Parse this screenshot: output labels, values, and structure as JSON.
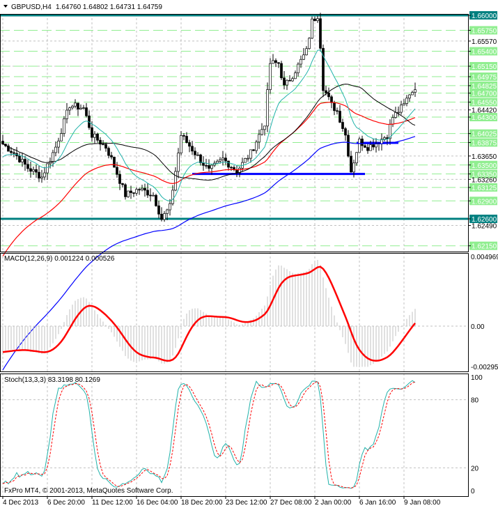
{
  "header": {
    "symbol": "GBPUSD,H4",
    "ohlc": "1.64760 1.64802 1.64731 1.64759"
  },
  "macd_label": "MACD(12,26,9) 0.001224 0.000526",
  "stoch_label": "Stoch(13,3,3) 83.3198 80.1269",
  "copyright": "FxPro MT4, © 2001-2013, MetaQuotes Software Corp.",
  "colors": {
    "teal": "#008080",
    "green_level": "#90ee90",
    "blue": "#0000ff",
    "red": "#ff0000",
    "cyan": "#20b2aa",
    "black": "#000000",
    "macd_hist": "#c0c0c0"
  },
  "chart_data": [
    {
      "type": "candlestick",
      "title": "GBPUSD,H4",
      "ylim": [
        1.6211,
        1.6602
      ],
      "close_keyframes": [
        [
          0,
          1.6385
        ],
        [
          4,
          1.637
        ],
        [
          9,
          1.6345
        ],
        [
          14,
          1.633
        ],
        [
          19,
          1.638
        ],
        [
          24,
          1.645
        ],
        [
          29,
          1.6445
        ],
        [
          32,
          1.64
        ],
        [
          37,
          1.638
        ],
        [
          39,
          1.636
        ],
        [
          44,
          1.63
        ],
        [
          49,
          1.631
        ],
        [
          54,
          1.63
        ],
        [
          57,
          1.626
        ],
        [
          60,
          1.628
        ],
        [
          63,
          1.637
        ],
        [
          64,
          1.64
        ],
        [
          69,
          1.637
        ],
        [
          74,
          1.634
        ],
        [
          79,
          1.636
        ],
        [
          84,
          1.634
        ],
        [
          89,
          1.637
        ],
        [
          94,
          1.642
        ],
        [
          96,
          1.652
        ],
        [
          99,
          1.652
        ],
        [
          101,
          1.648
        ],
        [
          104,
          1.65
        ],
        [
          109,
          1.654
        ],
        [
          111,
          1.659
        ],
        [
          113,
          1.66
        ],
        [
          114,
          1.655
        ],
        [
          115,
          1.648
        ],
        [
          118,
          1.645
        ],
        [
          120,
          1.644
        ],
        [
          123,
          1.64
        ],
        [
          125,
          1.634
        ],
        [
          128,
          1.639
        ],
        [
          131,
          1.638
        ],
        [
          135,
          1.639
        ],
        [
          138,
          1.64
        ],
        [
          140,
          1.643
        ],
        [
          144,
          1.645
        ],
        [
          146,
          1.647
        ],
        [
          148,
          1.6476
        ]
      ],
      "price_labels": [
        "1.66000",
        "1.65750",
        "1.65570",
        "1.65400",
        "1.65150",
        "1.64975",
        "1.64825",
        "1.64700",
        "1.64550",
        "1.64420",
        "1.64300",
        "1.64025",
        "1.63875",
        "1.63650",
        "1.63500",
        "1.63350",
        "1.63260",
        "1.63125",
        "1.62900",
        "1.62600",
        "1.62490",
        "1.62150"
      ],
      "key_levels": [
        1.66,
        1.626
      ],
      "green_levels": [
        1.6575,
        1.654,
        1.6515,
        1.64975,
        1.64825,
        1.647,
        1.6455,
        1.643,
        1.64025,
        1.63875,
        1.635,
        1.6335,
        1.63125,
        1.629,
        1.6215
      ],
      "grid_levels": [
        1.6557,
        1.6515,
        1.6442,
        1.6365,
        1.6326,
        1.6249
      ],
      "support_lines": [
        {
          "level": 1.6335,
          "from_bar": 68,
          "to_bar": 130
        },
        {
          "level": 1.6387,
          "from_bar": 127,
          "to_bar": 142
        }
      ],
      "x_tick_labels": [
        "4 Dec 2013",
        "6 Dec 20:00",
        "11 Dec 12:00",
        "16 Dec 04:00",
        "18 Dec 20:00",
        "23 Dec 12:00",
        "27 Dec 08:00",
        "2 Jan 00:00",
        "6 Jan 16:00",
        "9 Jan 08:00"
      ]
    },
    {
      "type": "bar+line",
      "title": "MACD(12,26,9)",
      "ylim": [
        -0.002954,
        0.004969
      ],
      "y_tick_labels": [
        "0.004969",
        "0.00",
        "-0.002954"
      ]
    },
    {
      "type": "line",
      "title": "Stoch(13,3,3)",
      "ylim": [
        0,
        100
      ],
      "y_tick_labels": [
        "100",
        "80",
        "20",
        "0"
      ]
    }
  ]
}
